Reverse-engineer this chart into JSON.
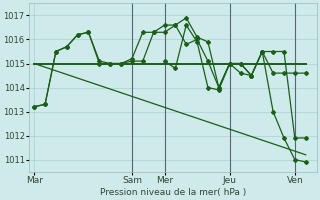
{
  "background_color": "#ceeaea",
  "grid_color": "#aacfcf",
  "line_color": "#1a5e1a",
  "marker_color": "#1a5e1a",
  "xlabel": "Pression niveau de la mer( hPa )",
  "ylim": [
    1010.5,
    1017.5
  ],
  "yticks": [
    1011,
    1012,
    1013,
    1014,
    1015,
    1016,
    1017
  ],
  "day_labels": [
    "Mar",
    "Sam",
    "Mer",
    "Jeu",
    "Ven"
  ],
  "day_positions": [
    0,
    36,
    48,
    72,
    96
  ],
  "xlim": [
    -2,
    104
  ],
  "vline_positions": [
    36,
    48,
    72,
    96
  ],
  "series1_x": [
    0,
    4,
    8,
    12,
    16,
    20,
    24,
    28,
    32,
    36,
    40,
    44,
    48,
    52,
    56,
    60,
    64,
    68,
    72,
    76,
    80,
    84,
    88,
    92,
    96,
    100
  ],
  "series1_y": [
    1013.2,
    1013.3,
    1015.5,
    1015.7,
    1016.2,
    1016.3,
    1015.1,
    1015.0,
    1015.0,
    1015.1,
    1015.1,
    1016.3,
    1016.3,
    1016.6,
    1015.8,
    1016.0,
    1015.1,
    1014.0,
    1015.0,
    1015.0,
    1014.5,
    1015.5,
    1014.6,
    1014.6,
    1014.6,
    1014.6
  ],
  "series2_x": [
    0,
    4,
    8,
    12,
    16,
    20,
    24,
    28,
    32,
    36,
    40,
    44,
    48,
    52,
    56,
    60,
    64,
    68,
    72,
    76,
    80,
    84,
    88,
    92,
    96,
    100
  ],
  "series2_y": [
    1013.2,
    1013.3,
    1015.5,
    1015.7,
    1016.2,
    1016.3,
    1015.0,
    1015.0,
    1015.0,
    1015.2,
    1016.3,
    1016.3,
    1016.6,
    1016.6,
    1016.9,
    1016.1,
    1015.9,
    1014.0,
    1015.0,
    1014.6,
    1014.5,
    1015.5,
    1015.5,
    1015.5,
    1011.9,
    1011.9
  ],
  "series3_x": [
    0,
    100
  ],
  "series3_y": [
    1015.0,
    1015.0
  ],
  "series4_x": [
    0,
    100
  ],
  "series4_y": [
    1015.0,
    1011.2
  ],
  "series5_x": [
    48,
    52,
    56,
    60,
    64,
    68,
    72,
    76,
    80,
    84,
    88,
    92,
    96,
    100
  ],
  "series5_y": [
    1015.1,
    1014.8,
    1016.6,
    1015.9,
    1014.0,
    1013.9,
    1015.0,
    1015.0,
    1014.5,
    1015.5,
    1013.0,
    1011.9,
    1011.0,
    1010.9
  ]
}
